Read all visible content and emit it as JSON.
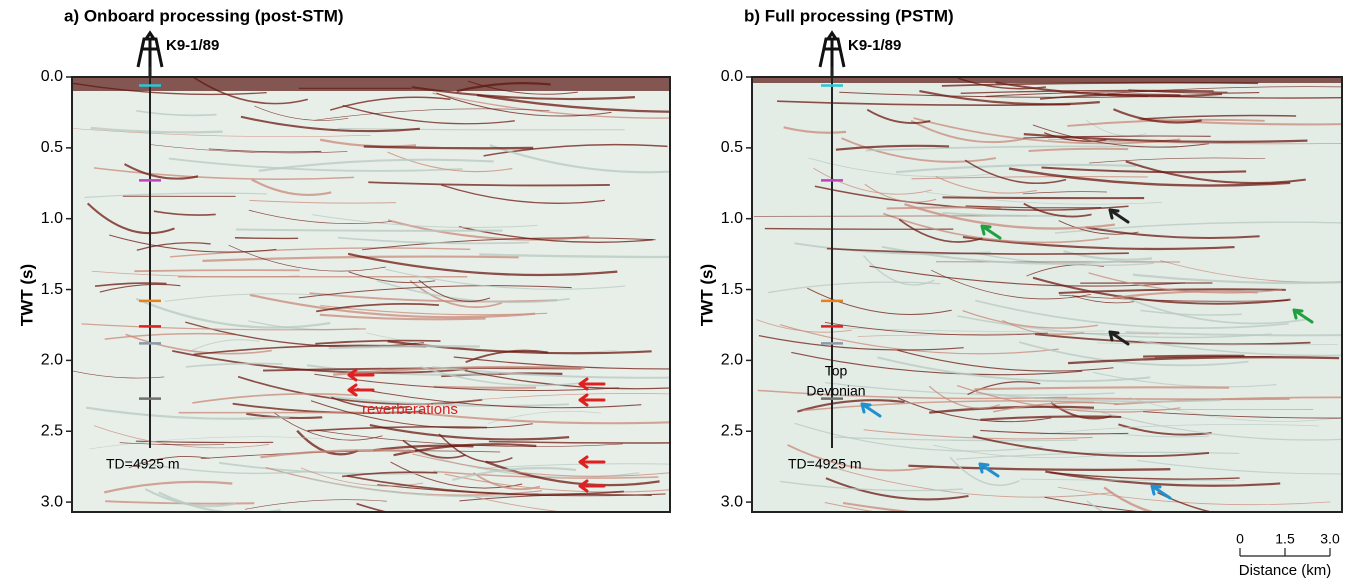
{
  "panels": [
    {
      "title": "a) Onboard processing (post-STM)",
      "well": "K9-1/89",
      "y_label": "TWT (s)",
      "ylim": [
        0,
        3.07
      ],
      "yticks": [
        {
          "value": 0,
          "label": "0.0"
        },
        0.5,
        {
          "value": 1,
          "label": "1.0"
        },
        1.5,
        {
          "value": 2,
          "label": "2.0"
        },
        2.5,
        {
          "value": 3,
          "label": "3.0"
        }
      ],
      "horizons": [
        {
          "color": "#27c8d8",
          "twt": 0.06
        },
        {
          "color": "#c040c0",
          "twt": 0.73
        },
        {
          "color": "#e8801c",
          "twt": 1.58
        },
        {
          "color": "#e02020",
          "twt": 1.76
        },
        {
          "color": "#8a9aa8",
          "twt": 1.88
        },
        {
          "color": "#707070",
          "twt": 2.27
        }
      ],
      "td": "TD=4925 m",
      "annotation": "reverberations"
    },
    {
      "title": "b) Full processing (PSTM)",
      "well": "K9-1/89",
      "y_label": "TWT (s)",
      "ylim": [
        0,
        3.07
      ],
      "yticks": [
        {
          "value": 0,
          "label": "0.0"
        },
        0.5,
        {
          "value": 1,
          "label": "1.0"
        },
        1.5,
        {
          "value": 2,
          "label": "2.0"
        },
        2.5,
        {
          "value": 3,
          "label": "3.0"
        }
      ],
      "horizons": [
        {
          "color": "#27c8d8",
          "twt": 0.06
        },
        {
          "color": "#c040c0",
          "twt": 0.73
        },
        {
          "color": "#e8801c",
          "twt": 1.58
        },
        {
          "color": "#e02020",
          "twt": 1.76
        },
        {
          "color": "#8a9aa8",
          "twt": 1.88
        },
        {
          "color": "#707070",
          "twt": 2.27
        }
      ],
      "td": "TD=4925 m",
      "annotation": [
        "Top",
        "Devonian"
      ]
    }
  ],
  "scale_bar": {
    "ticks": [
      0,
      1.5,
      {
        "value": 3,
        "label": "3.0"
      }
    ],
    "title": "Distance (km)"
  }
}
